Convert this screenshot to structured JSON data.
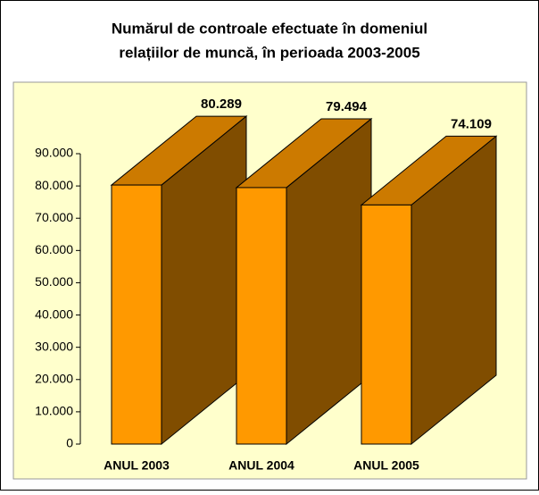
{
  "chart_data": {
    "type": "bar3d",
    "title": [
      "Numărul de controale efectuate în domeniul",
      "relațiilor de muncă,  în perioada 2003-2005"
    ],
    "categories": [
      "ANUL 2003",
      "ANUL 2004",
      "ANUL 2005"
    ],
    "values": [
      80289,
      79494,
      74109
    ],
    "value_labels": [
      "80.289",
      "79.494",
      "74.109"
    ],
    "color": "#ff9900",
    "ylim": [
      0,
      90000
    ],
    "yticks": [
      0,
      {
        "value": 10000,
        "label": "10.000"
      },
      {
        "value": 20000,
        "label": "20.000"
      },
      {
        "value": 30000,
        "label": "30.000"
      },
      {
        "value": 40000,
        "label": "40.000"
      },
      {
        "value": 50000,
        "label": "50.000"
      },
      {
        "value": 60000,
        "label": "60.000"
      },
      {
        "value": 70000,
        "label": "70.000"
      },
      {
        "value": 80000,
        "label": "80.000"
      },
      {
        "value": 90000,
        "label": "90.000"
      }
    ]
  }
}
